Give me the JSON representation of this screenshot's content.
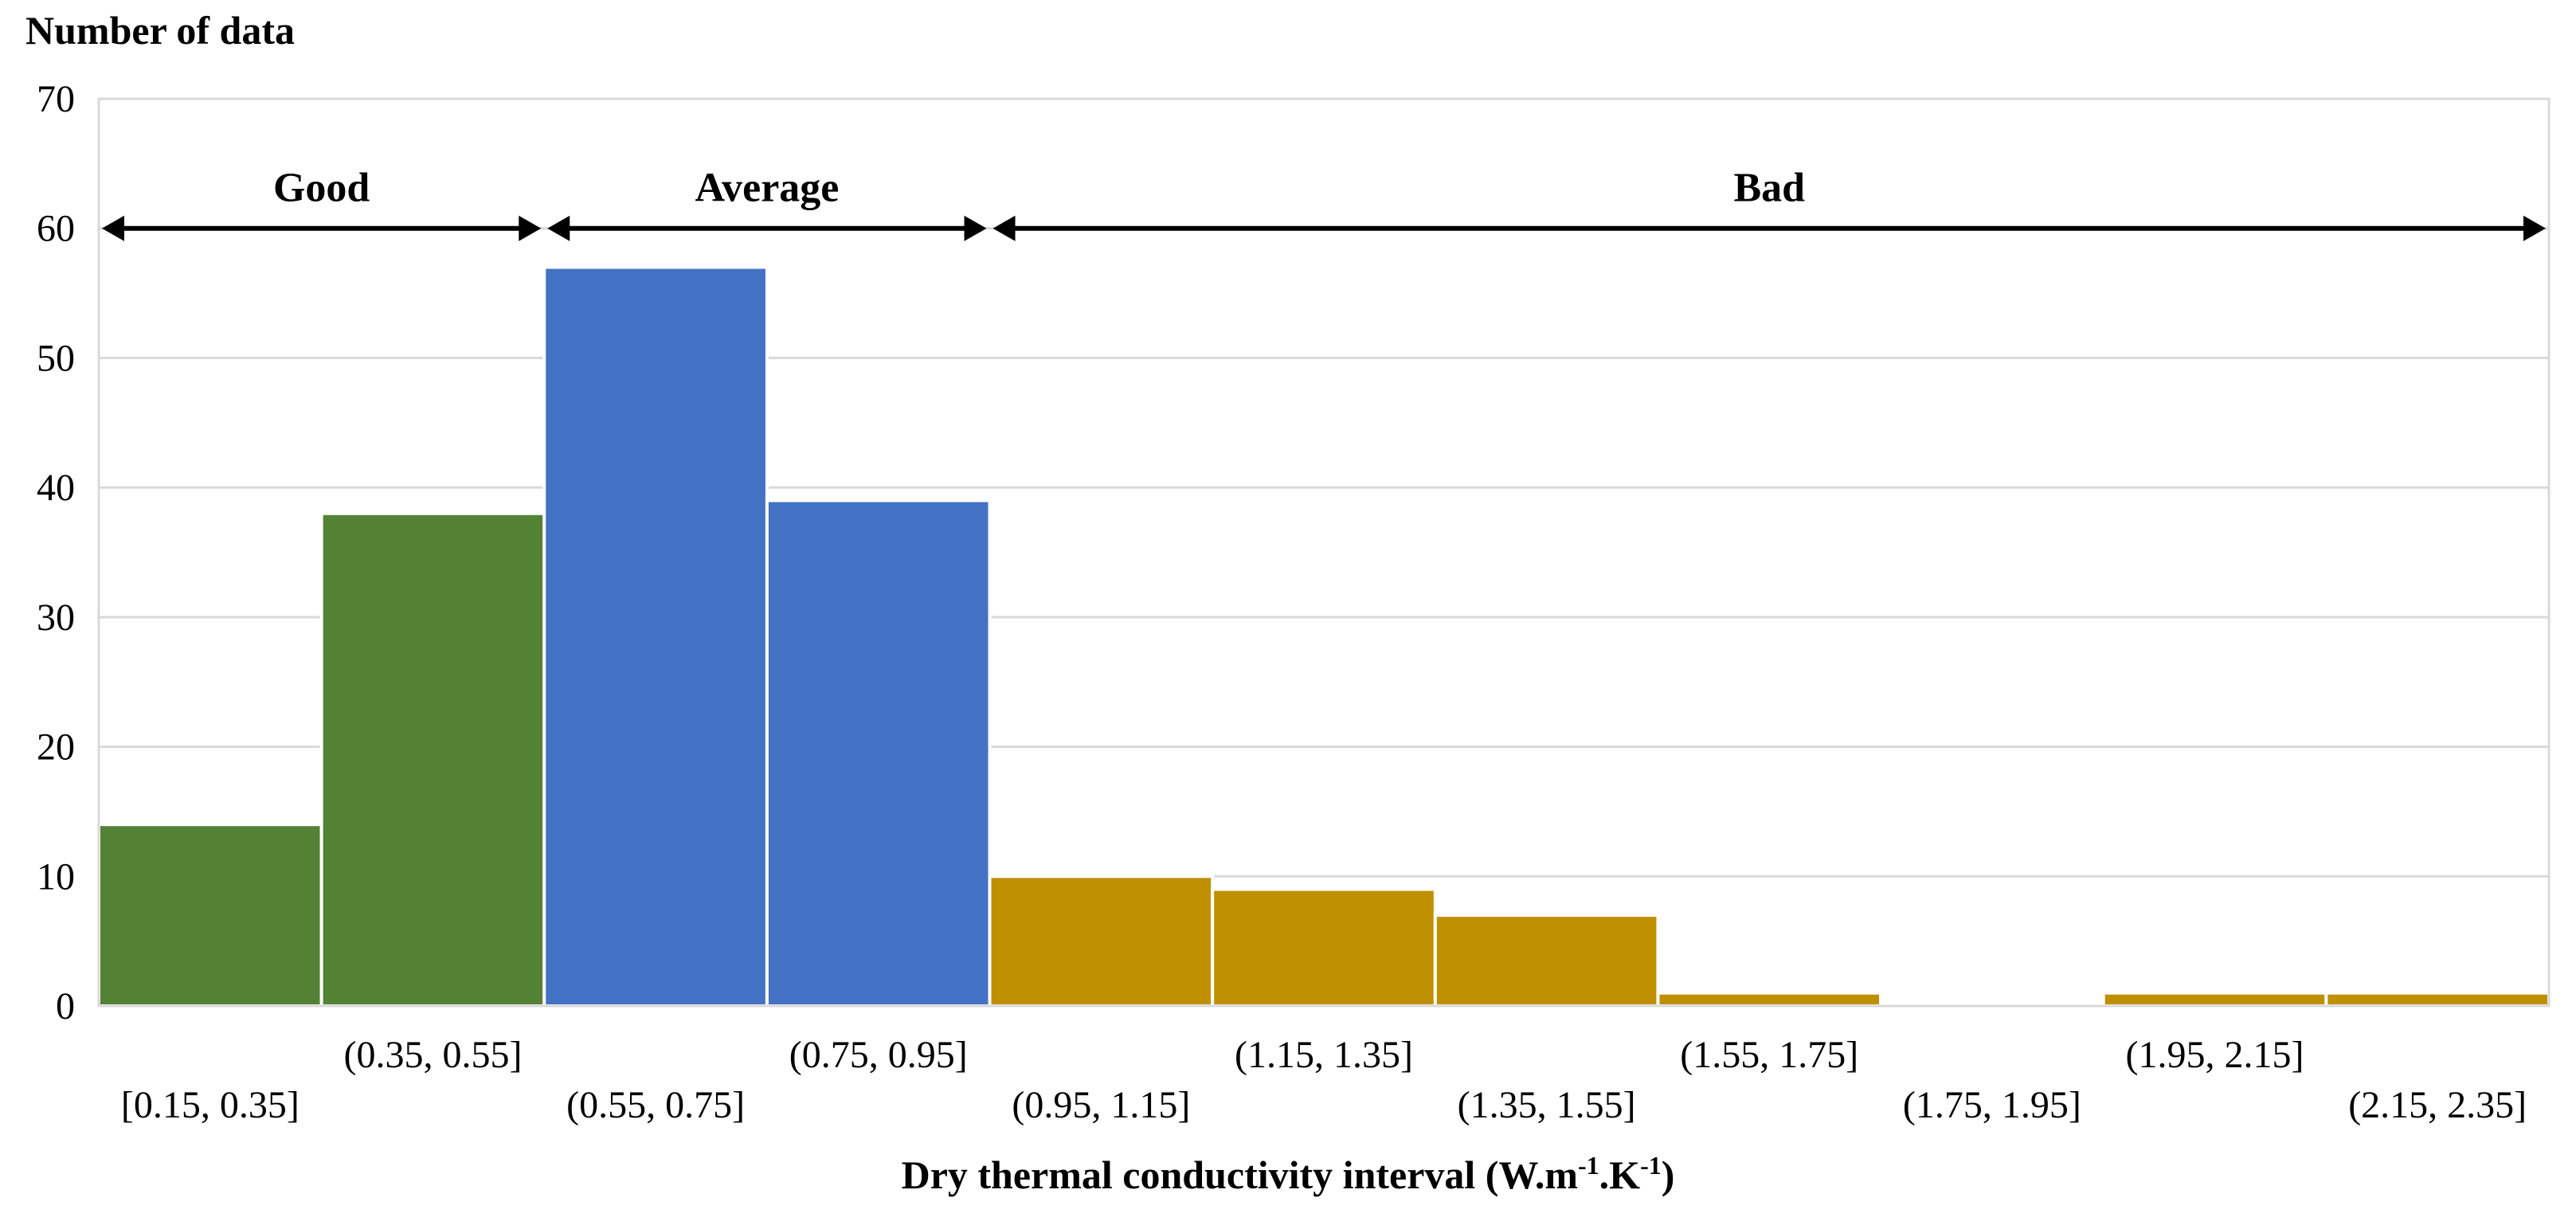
{
  "chart_data": {
    "type": "bar",
    "title": "",
    "ylabel": "Number of data",
    "xlabel_main": "Dry thermal conductivity interval (W.m",
    "xlabel_sup1": "-1",
    "xlabel_mid": ".K",
    "xlabel_sup2": "-1",
    "xlabel_end": ")",
    "ylim": [
      0,
      70
    ],
    "yticks": [
      "0",
      "10",
      "20",
      "30",
      "40",
      "50",
      "60",
      "70"
    ],
    "grid": true,
    "categories": [
      "[0.15, 0.35]",
      "(0.35, 0.55]",
      "(0.55, 0.75]",
      "(0.75, 0.95]",
      "(0.95, 1.15]",
      "(1.15, 1.35]",
      "(1.35, 1.55]",
      "(1.55, 1.75]",
      "(1.75, 1.95]",
      "(1.95, 2.15]",
      "(2.15, 2.35]"
    ],
    "values": [
      14,
      38,
      57,
      39,
      10,
      9,
      7,
      1,
      0,
      1,
      1
    ],
    "bar_groups": [
      "Good",
      "Good",
      "Average",
      "Average",
      "Bad",
      "Bad",
      "Bad",
      "Bad",
      "Bad",
      "Bad",
      "Bad"
    ],
    "annotations": [
      {
        "label": "Good",
        "from_index": 0,
        "to_index": 1,
        "y": 60
      },
      {
        "label": "Average",
        "from_index": 2,
        "to_index": 3,
        "y": 60
      },
      {
        "label": "Bad",
        "from_index": 4,
        "to_index": 10,
        "y": 60
      }
    ],
    "colors": {
      "Good": "#548235",
      "Average": "#4472C4",
      "Bad": "#BF9000",
      "grid": "#D9D9D9",
      "axis": "#000000"
    }
  }
}
